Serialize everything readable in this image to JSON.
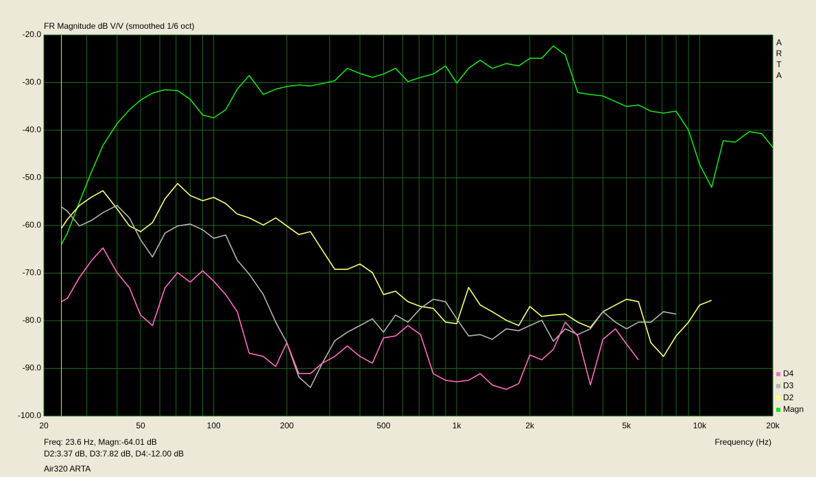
{
  "chart_data": {
    "type": "line",
    "title": "FR Magnitude dB V/V (smoothed 1/6 oct)",
    "side_label": "ARTA",
    "x_label": "Frequency (Hz)",
    "footer": [
      "Freq: 23.6 Hz, Magn:-64.01 dB",
      "D2:3.37 dB, D3:7.82 dB, D4:-12.00 dB",
      "Air320 ARTA"
    ],
    "x_log": true,
    "grid": true,
    "cursor": 23.6,
    "xlim": [
      20,
      20000
    ],
    "ylim": [
      -100,
      -20
    ],
    "xticks": [
      20,
      50,
      100,
      200,
      500,
      {
        "value": 1000,
        "label": "1k"
      },
      {
        "value": 2000,
        "label": "2k"
      },
      {
        "value": 5000,
        "label": "5k"
      },
      {
        "value": 10000,
        "label": "10k"
      },
      {
        "value": 20000,
        "label": "20k"
      }
    ],
    "xgrid_minor": [
      30,
      40,
      60,
      70,
      80,
      90,
      300,
      400,
      600,
      700,
      800,
      900,
      3000,
      4000,
      6000,
      7000,
      8000,
      9000
    ],
    "yticks": [
      {
        "value": -20,
        "label": "-20.0"
      },
      {
        "value": -30,
        "label": "-30.0"
      },
      {
        "value": -40,
        "label": "-40.0"
      },
      {
        "value": -50,
        "label": "-50.0"
      },
      {
        "value": -60,
        "label": "-60.0"
      },
      {
        "value": -70,
        "label": "-70.0"
      },
      {
        "value": -80,
        "label": "-80.0"
      },
      {
        "value": -90,
        "label": "-90.0"
      },
      {
        "value": -100,
        "label": "-100.0"
      }
    ],
    "x": [
      23.6,
      25,
      28,
      31.5,
      35,
      40,
      45,
      50,
      56,
      63,
      71,
      80,
      90,
      100,
      112,
      125,
      140,
      160,
      180,
      200,
      224,
      250,
      280,
      315,
      355,
      400,
      450,
      500,
      560,
      630,
      710,
      800,
      900,
      1000,
      1120,
      1250,
      1400,
      1600,
      1800,
      2000,
      2240,
      2500,
      2800,
      3150,
      3550,
      4000,
      4500,
      5000,
      5600,
      6300,
      7100,
      8000,
      9000,
      10000,
      11200,
      12500,
      14000,
      16000,
      18000,
      20000
    ],
    "legend": "bottom-right",
    "series": [
      {
        "name": "D4",
        "color": "#ff6ec7",
        "values": [
          -76,
          -75.3,
          -70.9,
          -67.3,
          -64.7,
          -69.9,
          -73.1,
          -78.8,
          -81,
          -73.1,
          -69.9,
          -71.9,
          -69.5,
          -71.7,
          -74.5,
          -78.1,
          -86.8,
          -87.5,
          -89.6,
          -84.6,
          -91.1,
          -91.1,
          -88.9,
          -87.5,
          -85.3,
          -87.5,
          -88.9,
          -83.6,
          -83.2,
          -81,
          -82.9,
          -91.1,
          -92.5,
          -92.8,
          -92.5,
          -91.1,
          -93.5,
          -94.4,
          -93.2,
          -87.2,
          -88.2,
          -86,
          -80.3,
          -83.2,
          -93.5,
          -83.9,
          -81.7,
          -84.9,
          -88.2,
          null,
          null,
          null,
          null,
          null,
          null,
          null,
          null,
          null,
          null,
          null
        ]
      },
      {
        "name": "D3",
        "color": "#b4b4b4",
        "values": [
          -56.1,
          -57,
          -60.1,
          -58.9,
          -57.3,
          -55.8,
          -58.4,
          -63,
          -66.6,
          -61.6,
          -60.1,
          -59.7,
          -60.9,
          -62.7,
          -62,
          -67.3,
          -70.2,
          -74.5,
          -80.3,
          -84.6,
          -91.8,
          -94,
          -88.9,
          -84.2,
          -82.4,
          -81,
          -79.6,
          -82.4,
          -78.8,
          -80.3,
          -77.4,
          -75.5,
          -76,
          -79.6,
          -83.2,
          -82.9,
          -83.9,
          -81.7,
          -82.1,
          -81,
          -79.9,
          -84.3,
          -81.7,
          -82.9,
          -81.7,
          -78.1,
          -80.3,
          -81.7,
          -80.3,
          -80.3,
          -78.1,
          -78.6,
          null,
          null,
          null,
          null,
          null,
          null,
          null,
          null
        ]
      },
      {
        "name": "D2",
        "color": "#ffff80",
        "values": [
          -60.6,
          -58.7,
          -55.8,
          -54,
          -52.7,
          -56.5,
          -60.1,
          -61.3,
          -59.4,
          -54.4,
          -51.2,
          -53.7,
          -54.8,
          -54.1,
          -55.4,
          -57.6,
          -58.4,
          -59.9,
          -58.4,
          -60.1,
          -61.9,
          -61.3,
          -65.2,
          -69.2,
          -69.2,
          -68.1,
          -69.9,
          -74.5,
          -73.8,
          -76,
          -77,
          -77.4,
          -80.3,
          -80.6,
          -73,
          -76.7,
          -78.1,
          -79.9,
          -81,
          -77,
          -79.1,
          -78.8,
          -78.6,
          -80.3,
          -81.4,
          -78.1,
          -76.7,
          -75.5,
          -76,
          -84.6,
          -87.5,
          -83.2,
          -80.3,
          -76.7,
          -75.7,
          null,
          null,
          null,
          null,
          null
        ]
      },
      {
        "name": "Magn",
        "color": "#18e018",
        "values": [
          -64,
          -61.6,
          -55.1,
          -48.6,
          -43.2,
          -38.6,
          -35.7,
          -33.7,
          -32.2,
          -31.5,
          -31.7,
          -33.5,
          -36.8,
          -37.4,
          -35.7,
          -31.4,
          -28.5,
          -32.5,
          -31.4,
          -30.8,
          -30.5,
          -30.7,
          -30.2,
          -29.6,
          -27,
          -28.1,
          -28.9,
          -28.2,
          -27,
          -29.8,
          -28.9,
          -28.2,
          -26.5,
          -30.1,
          -27,
          -25.3,
          -27,
          -26,
          -26.5,
          -24.9,
          -24.9,
          -22.3,
          -24.2,
          -32.1,
          -32.5,
          -32.8,
          -34,
          -35,
          -34.7,
          -36,
          -36.4,
          -36,
          -40,
          -47.2,
          -52,
          -42.2,
          -42.5,
          -40.3,
          -40.7,
          -43.6
        ]
      }
    ]
  }
}
